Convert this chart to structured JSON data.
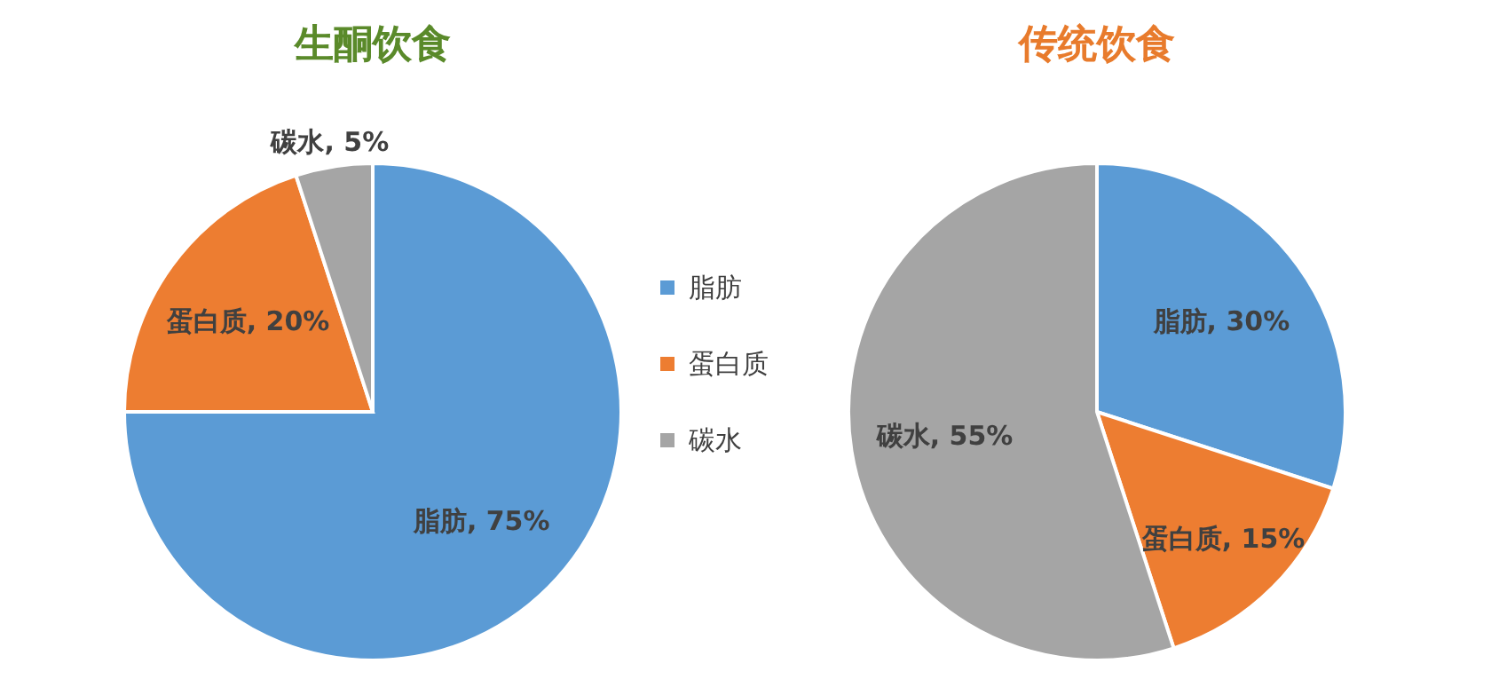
{
  "chart_data": [
    {
      "type": "pie",
      "title": "生酮饮食",
      "categories": [
        "脂肪",
        "蛋白质",
        "碳水"
      ],
      "values": [
        75,
        20,
        5
      ],
      "value_labels": [
        ", 75%",
        ", 20%",
        ", 5%"
      ],
      "colors": [
        "#5b9bd5",
        "#ed7d31",
        "#a5a5a5"
      ],
      "legend": "right"
    },
    {
      "type": "pie",
      "title": "传统饮食",
      "categories": [
        "脂肪",
        "蛋白质",
        "碳水"
      ],
      "values": [
        30,
        15,
        55
      ],
      "value_labels": [
        ", 30%",
        ", 15%",
        ", 55%"
      ],
      "colors": [
        "#5b9bd5",
        "#ed7d31",
        "#a5a5a5"
      ]
    }
  ]
}
